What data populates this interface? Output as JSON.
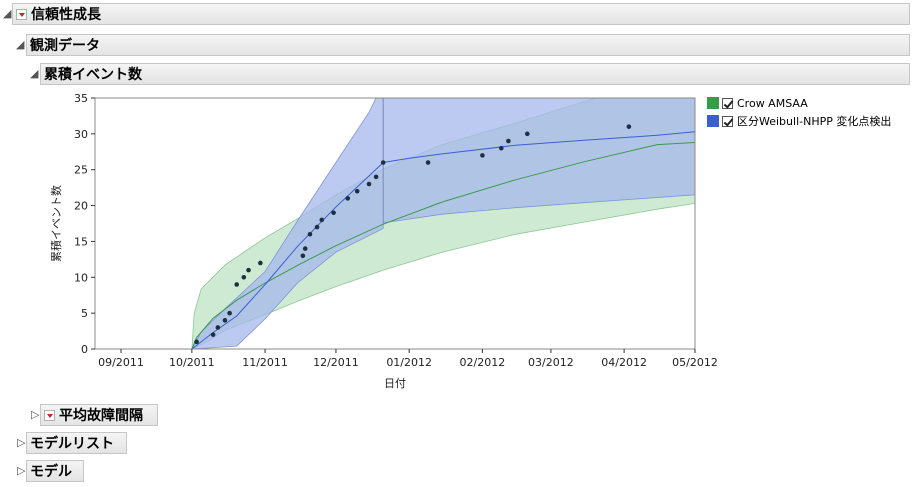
{
  "outline": {
    "reliability_growth": "信頼性成長",
    "observed_data": "観測データ",
    "cumulative_events": "累積イベント数",
    "mtbf": "平均故障間隔",
    "model_list": "モデルリスト",
    "model": "モデル"
  },
  "legend": {
    "items": [
      {
        "label": "Crow AMSAA",
        "color": "#3a9a4a"
      },
      {
        "label": "区分Weibull-NHPP 変化点検出",
        "color": "#3a5fd0"
      }
    ]
  },
  "chart_data": {
    "type": "scatter",
    "xlabel": "日付",
    "ylabel": "累積イベント数",
    "x_tick_labels": [
      "09/2011",
      "10/2011",
      "11/2011",
      "12/2011",
      "01/2012",
      "02/2012",
      "03/2012",
      "04/2012",
      "05/2012"
    ],
    "x_tick_dates": [
      "2011-09-01",
      "2011-10-01",
      "2011-11-01",
      "2011-12-01",
      "2012-01-01",
      "2012-02-01",
      "2012-03-01",
      "2012-04-01",
      "2012-05-01"
    ],
    "xlim": [
      "2011-08-21",
      "2012-05-01"
    ],
    "ylim": [
      0,
      35
    ],
    "y_ticks": [
      0,
      5,
      10,
      15,
      20,
      25,
      30,
      35
    ],
    "points": [
      {
        "x": "2011-10-03",
        "y": 1
      },
      {
        "x": "2011-10-10",
        "y": 2
      },
      {
        "x": "2011-10-12",
        "y": 3
      },
      {
        "x": "2011-10-15",
        "y": 4
      },
      {
        "x": "2011-10-17",
        "y": 5
      },
      {
        "x": "2011-10-20",
        "y": 9
      },
      {
        "x": "2011-10-23",
        "y": 10
      },
      {
        "x": "2011-10-25",
        "y": 11
      },
      {
        "x": "2011-10-30",
        "y": 12
      },
      {
        "x": "2011-11-17",
        "y": 13
      },
      {
        "x": "2011-11-18",
        "y": 14
      },
      {
        "x": "2011-11-20",
        "y": 16
      },
      {
        "x": "2011-11-23",
        "y": 17
      },
      {
        "x": "2011-11-25",
        "y": 18
      },
      {
        "x": "2011-11-30",
        "y": 19
      },
      {
        "x": "2011-12-06",
        "y": 21
      },
      {
        "x": "2011-12-10",
        "y": 22
      },
      {
        "x": "2011-12-15",
        "y": 23
      },
      {
        "x": "2011-12-18",
        "y": 24
      },
      {
        "x": "2011-12-21",
        "y": 26
      },
      {
        "x": "2012-01-09",
        "y": 26
      },
      {
        "x": "2012-02-01",
        "y": 27
      },
      {
        "x": "2012-02-09",
        "y": 28
      },
      {
        "x": "2012-02-12",
        "y": 29
      },
      {
        "x": "2012-02-20",
        "y": 30
      },
      {
        "x": "2012-04-03",
        "y": 31
      }
    ],
    "series": [
      {
        "name": "Crow AMSAA",
        "color": "#3a9a4a",
        "band_color": "#bfe3c3",
        "fit": [
          [
            "2011-10-01",
            0
          ],
          [
            "2011-10-03",
            1.6
          ],
          [
            "2011-10-10",
            4.3
          ],
          [
            "2011-10-20",
            6.8
          ],
          [
            "2011-11-01",
            9.2
          ],
          [
            "2011-11-15",
            11.7
          ],
          [
            "2011-12-01",
            14.4
          ],
          [
            "2011-12-21",
            17.4
          ],
          [
            "2012-01-15",
            20.5
          ],
          [
            "2012-02-15",
            23.6
          ],
          [
            "2012-03-15",
            26.1
          ],
          [
            "2012-04-15",
            28.5
          ],
          [
            "2012-05-01",
            28.8
          ]
        ],
        "upper": [
          [
            "2011-10-01",
            0
          ],
          [
            "2011-10-02",
            5
          ],
          [
            "2011-10-05",
            8.4
          ],
          [
            "2011-10-15",
            11.7
          ],
          [
            "2011-11-01",
            15.5
          ],
          [
            "2011-11-15",
            18.2
          ],
          [
            "2011-12-01",
            21.5
          ],
          [
            "2011-12-21",
            25.1
          ],
          [
            "2012-01-15",
            28.5
          ],
          [
            "2012-02-15",
            31.5
          ],
          [
            "2012-03-10",
            34
          ],
          [
            "2012-03-20",
            35
          ],
          [
            "2012-05-01",
            35
          ]
        ],
        "lower": [
          [
            "2011-10-01",
            0
          ],
          [
            "2011-10-05",
            0.6
          ],
          [
            "2011-10-15",
            2.6
          ],
          [
            "2011-11-01",
            4.8
          ],
          [
            "2011-11-15",
            6.7
          ],
          [
            "2011-12-01",
            8.7
          ],
          [
            "2011-12-21",
            11.0
          ],
          [
            "2012-01-15",
            13.5
          ],
          [
            "2012-02-15",
            16
          ],
          [
            "2012-03-15",
            17.7
          ],
          [
            "2012-04-15",
            19.5
          ],
          [
            "2012-05-01",
            20.3
          ]
        ]
      },
      {
        "name": "区分Weibull-NHPP 変化点検出",
        "color": "#3a5fd0",
        "band_color": "#a5b8ec",
        "fit": [
          [
            "2011-10-01",
            0
          ],
          [
            "2011-10-10",
            2.3
          ],
          [
            "2011-10-20",
            4.6
          ],
          [
            "2011-11-01",
            9
          ],
          [
            "2011-11-15",
            14.4
          ],
          [
            "2011-12-01",
            19.8
          ],
          [
            "2011-12-21",
            26
          ],
          [
            "2012-01-01",
            26.6
          ],
          [
            "2012-01-15",
            27.2
          ],
          [
            "2012-02-15",
            28.4
          ],
          [
            "2012-03-15",
            29.1
          ],
          [
            "2012-04-15",
            29.8
          ],
          [
            "2012-05-01",
            30.3
          ]
        ],
        "upper": [
          [
            "2011-10-01",
            0
          ],
          [
            "2011-10-05",
            2.4
          ],
          [
            "2011-10-15",
            5.6
          ],
          [
            "2011-11-01",
            10.8
          ],
          [
            "2011-11-15",
            18
          ],
          [
            "2011-12-01",
            26
          ],
          [
            "2011-12-15",
            33
          ],
          [
            "2011-12-18",
            35
          ],
          [
            "2011-12-21",
            35
          ],
          [
            "2012-02-01",
            35
          ],
          [
            "2012-05-01",
            35
          ]
        ],
        "lower": [
          [
            "2011-10-01",
            0
          ],
          [
            "2011-10-20",
            0.4
          ],
          [
            "2011-11-01",
            4.2
          ],
          [
            "2011-11-15",
            9.3
          ],
          [
            "2011-12-01",
            13.5
          ],
          [
            "2011-12-21",
            16.8
          ],
          [
            "2011-12-21",
            17.6
          ],
          [
            "2012-01-15",
            18.8
          ],
          [
            "2012-02-15",
            19.7
          ],
          [
            "2012-03-15",
            20.4
          ],
          [
            "2012-05-01",
            21.5
          ]
        ]
      }
    ],
    "change_point": "2011-12-21"
  }
}
